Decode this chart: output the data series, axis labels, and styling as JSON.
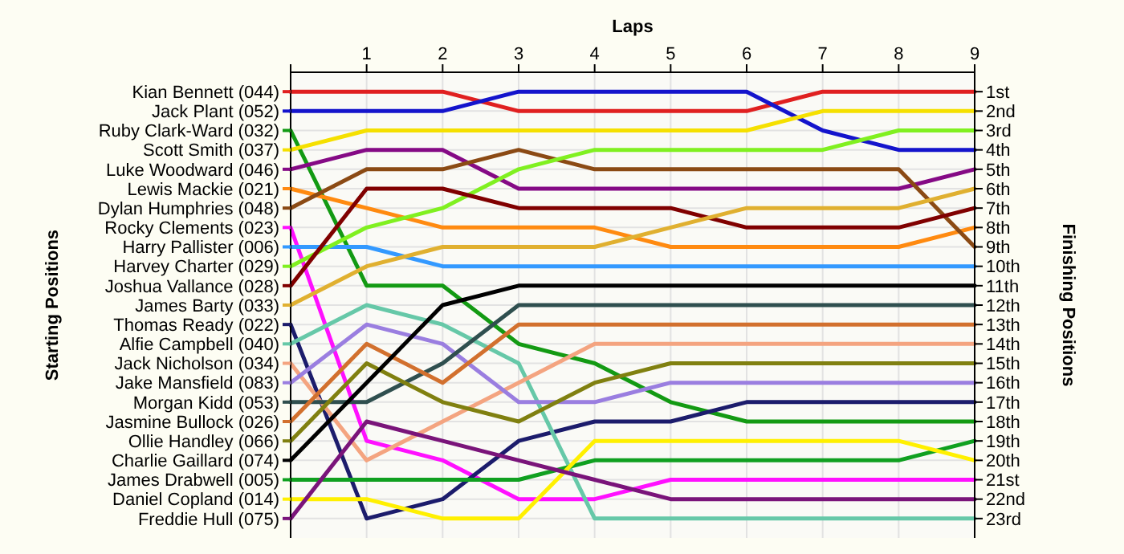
{
  "chart_data": {
    "type": "line",
    "xlabel": "Laps",
    "legend_title": "Starting Positions",
    "ylabel": "Finishing Positions",
    "x": [
      0,
      1,
      2,
      3,
      4,
      5,
      6,
      7,
      8,
      9
    ],
    "xlim": [
      0,
      9
    ],
    "xticks": [
      {
        "value": 0,
        "label": null
      },
      1,
      2,
      3,
      4,
      5,
      6,
      7,
      8,
      9
    ],
    "ylim": [
      24,
      0
    ],
    "yticks": [
      {
        "value": 1,
        "label": "1st"
      },
      {
        "value": 2,
        "label": "2nd"
      },
      {
        "value": 3,
        "label": "3rd"
      },
      {
        "value": 4,
        "label": "4th"
      },
      {
        "value": 5,
        "label": "5th"
      },
      {
        "value": 6,
        "label": "6th"
      },
      {
        "value": 7,
        "label": "7th"
      },
      {
        "value": 8,
        "label": "8th"
      },
      {
        "value": 9,
        "label": "9th"
      },
      {
        "value": 10,
        "label": "10th"
      },
      {
        "value": 11,
        "label": "11th"
      },
      {
        "value": 12,
        "label": "12th"
      },
      {
        "value": 13,
        "label": "13th"
      },
      {
        "value": 14,
        "label": "14th"
      },
      {
        "value": 15,
        "label": "15th"
      },
      {
        "value": 16,
        "label": "16th"
      },
      {
        "value": 17,
        "label": "17th"
      },
      {
        "value": 18,
        "label": "18th"
      },
      {
        "value": 19,
        "label": "19th"
      },
      {
        "value": 20,
        "label": "20th"
      },
      {
        "value": 21,
        "label": "21st"
      },
      {
        "value": 22,
        "label": "22nd"
      },
      {
        "value": 23,
        "label": "23rd"
      }
    ],
    "grid": true,
    "legend": "left",
    "marker": "none",
    "line_style": "solid",
    "series": [
      {
        "name": "Kian Bennett (044)",
        "color": "#e02020",
        "values": [
          1,
          1,
          1,
          2,
          2,
          2,
          2,
          1,
          1,
          1
        ]
      },
      {
        "name": "Jack Plant (052)",
        "color": "#1414cc",
        "values": [
          2,
          2,
          2,
          1,
          1,
          1,
          1,
          3,
          4,
          4
        ]
      },
      {
        "name": "Ruby Clark-Ward (032)",
        "color": "#139a13",
        "values": [
          3,
          11,
          11,
          14,
          15,
          17,
          18,
          18,
          18,
          18
        ]
      },
      {
        "name": "Scott Smith (037)",
        "color": "#f5e000",
        "values": [
          4,
          3,
          3,
          3,
          3,
          3,
          3,
          2,
          2,
          2
        ]
      },
      {
        "name": "Luke Woodward (046)",
        "color": "#850a85",
        "values": [
          5,
          4,
          4,
          6,
          6,
          6,
          6,
          6,
          6,
          5
        ]
      },
      {
        "name": "Lewis Mackie (021)",
        "color": "#ff8a10",
        "values": [
          6,
          7,
          8,
          8,
          8,
          9,
          9,
          9,
          9,
          8
        ]
      },
      {
        "name": "Dylan Humphries (048)",
        "color": "#8b4a14",
        "values": [
          7,
          5,
          5,
          4,
          5,
          5,
          5,
          5,
          5,
          9
        ]
      },
      {
        "name": "Rocky Clements (023)",
        "color": "#ff10ff",
        "values": [
          8,
          19,
          20,
          22,
          22,
          21,
          21,
          21,
          21,
          21
        ]
      },
      {
        "name": "Harry Pallister (006)",
        "color": "#3399ff",
        "values": [
          9,
          9,
          10,
          10,
          10,
          10,
          10,
          10,
          10,
          10
        ]
      },
      {
        "name": "Harvey Charter (029)",
        "color": "#80f020",
        "values": [
          10,
          8,
          7,
          5,
          4,
          4,
          4,
          4,
          3,
          3
        ]
      },
      {
        "name": "Joshua Vallance (028)",
        "color": "#800000",
        "values": [
          11,
          6,
          6,
          7,
          7,
          7,
          8,
          8,
          8,
          7
        ]
      },
      {
        "name": "James Barty (033)",
        "color": "#e0b030",
        "values": [
          12,
          10,
          9,
          9,
          9,
          8,
          7,
          7,
          7,
          6
        ]
      },
      {
        "name": "Thomas Ready (022)",
        "color": "#1c1c6c",
        "values": [
          13,
          23,
          22,
          19,
          18,
          18,
          17,
          17,
          17,
          17
        ]
      },
      {
        "name": "Alfie Campbell (040)",
        "color": "#66c8a8",
        "values": [
          14,
          12,
          13,
          15,
          23,
          23,
          23,
          23,
          23,
          23
        ]
      },
      {
        "name": "Jack Nicholson (034)",
        "color": "#f4a480",
        "values": [
          15,
          20,
          18,
          16,
          14,
          14,
          14,
          14,
          14,
          14
        ]
      },
      {
        "name": "Jake Mansfield (083)",
        "color": "#9a7ee0",
        "values": [
          16,
          13,
          14,
          17,
          17,
          16,
          16,
          16,
          16,
          16
        ]
      },
      {
        "name": "Morgan Kidd (053)",
        "color": "#2f4f4f",
        "values": [
          17,
          17,
          15,
          12,
          12,
          12,
          12,
          12,
          12,
          12
        ]
      },
      {
        "name": "Jasmine Bullock (026)",
        "color": "#d2702e",
        "values": [
          18,
          14,
          16,
          13,
          13,
          13,
          13,
          13,
          13,
          13
        ]
      },
      {
        "name": "Ollie Handley (066)",
        "color": "#808010",
        "values": [
          19,
          15,
          17,
          18,
          16,
          15,
          15,
          15,
          15,
          15
        ]
      },
      {
        "name": "Charlie Gaillard (074)",
        "color": "#000000",
        "values": [
          20,
          16,
          12,
          11,
          11,
          11,
          11,
          11,
          11,
          11
        ]
      },
      {
        "name": "James Drabwell (005)",
        "color": "#10a020",
        "values": [
          21,
          21,
          21,
          21,
          20,
          20,
          20,
          20,
          20,
          19
        ]
      },
      {
        "name": "Daniel Copland (014)",
        "color": "#fff000",
        "values": [
          22,
          22,
          23,
          23,
          19,
          19,
          19,
          19,
          19,
          20
        ]
      },
      {
        "name": "Freddie Hull (075)",
        "color": "#7a147a",
        "values": [
          23,
          18,
          19,
          20,
          21,
          22,
          22,
          22,
          22,
          22
        ]
      }
    ]
  }
}
